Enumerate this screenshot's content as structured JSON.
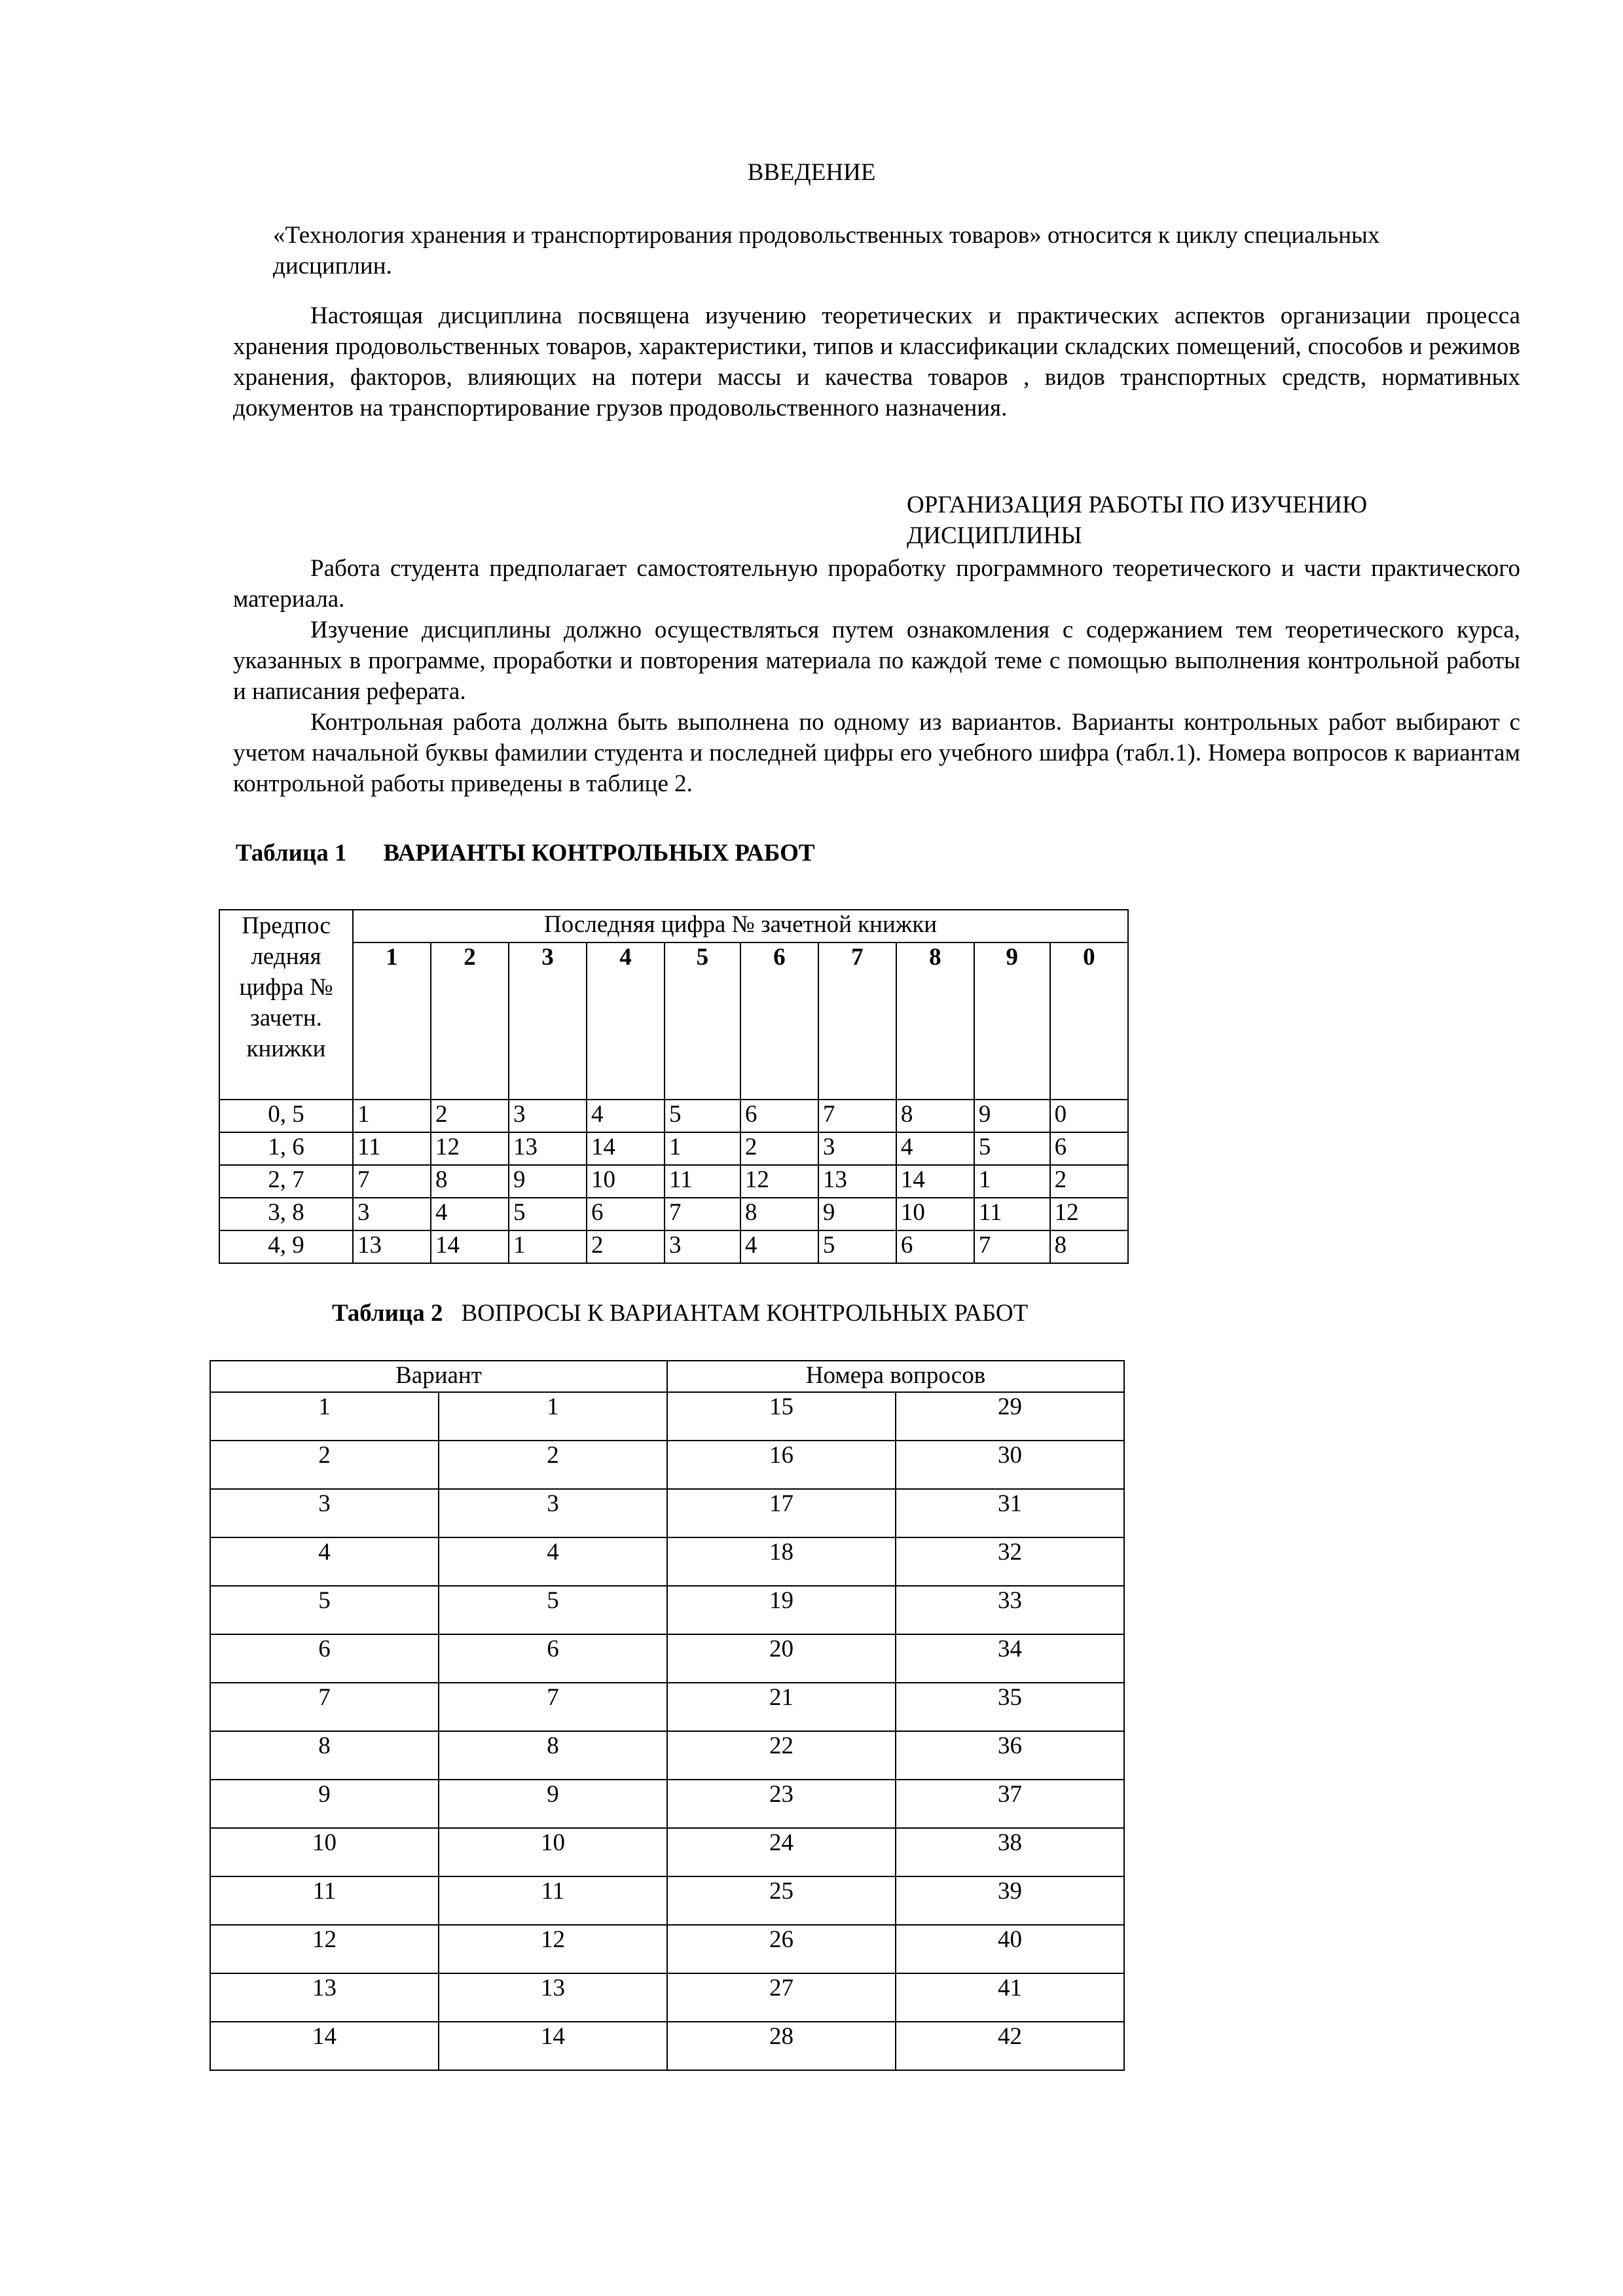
{
  "intro": {
    "heading": "ВВЕДЕНИЕ",
    "p1": "«Технология хранения и транспортирования продовольственных товаров» относится к циклу специальных дисциплин.",
    "p2": "Настоящая дисциплина посвящена изучению теоретических и практических аспектов организации процесса хранения продовольственных товаров, характеристики, типов и классификации складских помещений, способов и режимов хранения, факторов, влияющих на потери массы и качества товаров , видов транспортных средств, нормативных документов на транспортирование грузов продовольственного назначения."
  },
  "org": {
    "heading": "ОРГАНИЗАЦИЯ РАБОТЫ ПО ИЗУЧЕНИЮ  ДИСЦИПЛИНЫ",
    "p1": "Работа студента предполагает самостоятельную проработку программного теоретического и части практического материала.",
    "p2": "Изучение дисциплины должно осуществляться путем ознакомления с содержанием тем теоретического курса, указанных в программе, проработки и повторения материала по каждой теме с помощью выполнения контрольной работы и написания реферата.",
    "p3": "Контрольная работа должна быть выполнена по одному из вариантов. Варианты контрольных работ выбирают с учетом начальной буквы фамилии студента и последней цифры его учебного шифра (табл.1). Номера вопросов к вариантам контрольной работы приведены в таблице 2."
  },
  "table1": {
    "label": "Таблица 1",
    "title": "ВАРИАНТЫ КОНТРОЛЬНЫХ РАБОТ",
    "corner": "Предпос ледняя цифра № зачетн. книжки",
    "group_header": "Последняя цифра № зачетной книжки",
    "columns": [
      "1",
      "2",
      "3",
      "4",
      "5",
      "6",
      "7",
      "8",
      "9",
      "0"
    ],
    "rows": [
      {
        "key": "0, 5",
        "values": [
          "1",
          "2",
          "3",
          "4",
          "5",
          "6",
          "7",
          "8",
          "9",
          "0"
        ]
      },
      {
        "key": "1, 6",
        "values": [
          "11",
          "12",
          "13",
          "14",
          "1",
          "2",
          "3",
          "4",
          "5",
          "6"
        ]
      },
      {
        "key": "2, 7",
        "values": [
          "7",
          "8",
          "9",
          "10",
          "11",
          "12",
          "13",
          "14",
          "1",
          "2"
        ]
      },
      {
        "key": "3, 8",
        "values": [
          "3",
          "4",
          "5",
          "6",
          "7",
          "8",
          "9",
          "10",
          "11",
          "12"
        ]
      },
      {
        "key": "4, 9",
        "values": [
          "13",
          "14",
          "1",
          "2",
          "3",
          "4",
          "5",
          "6",
          "7",
          "8"
        ]
      }
    ]
  },
  "table2": {
    "label": "Таблица 2",
    "title": "ВОПРОСЫ К ВАРИАНТАМ КОНТРОЛЬНЫХ РАБОТ",
    "headers": [
      "Вариант",
      "Номера вопросов"
    ],
    "rows": [
      [
        "1",
        "1",
        "15",
        "29"
      ],
      [
        "2",
        "2",
        "16",
        "30"
      ],
      [
        "3",
        "3",
        "17",
        "31"
      ],
      [
        "4",
        "4",
        "18",
        "32"
      ],
      [
        "5",
        "5",
        "19",
        "33"
      ],
      [
        "6",
        "6",
        "20",
        "34"
      ],
      [
        "7",
        "7",
        "21",
        "35"
      ],
      [
        "8",
        "8",
        "22",
        "36"
      ],
      [
        "9",
        "9",
        "23",
        "37"
      ],
      [
        "10",
        "10",
        "24",
        "38"
      ],
      [
        "11",
        "11",
        "25",
        "39"
      ],
      [
        "12",
        "12",
        "26",
        "40"
      ],
      [
        "13",
        "13",
        "27",
        "41"
      ],
      [
        "14",
        "14",
        "28",
        "42"
      ]
    ]
  }
}
